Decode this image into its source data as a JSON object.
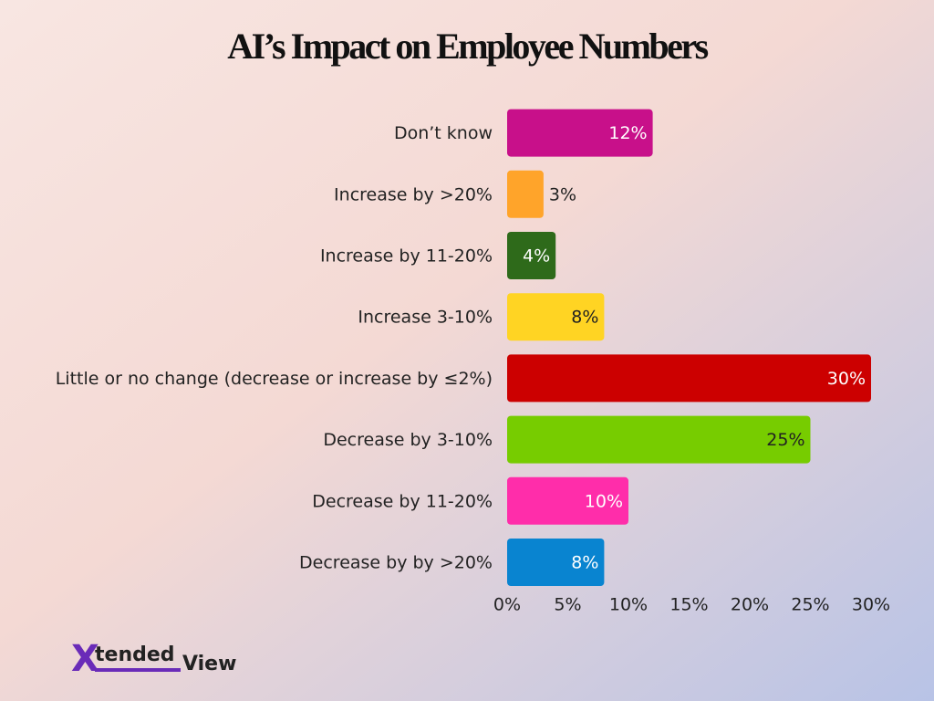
{
  "chart_data": {
    "type": "barh",
    "title": "AI’s Impact on Employee Numbers",
    "categories": [
      "Don’t know",
      "Increase by >20%",
      "Increase by 11-20%",
      "Increase 3-10%",
      "Little or no change (decrease or increase by ≤2%)",
      "Decrease by 3-10%",
      "Decrease by 11-20%",
      "Decrease by by >20%"
    ],
    "values": [
      12,
      3,
      4,
      8,
      30,
      25,
      10,
      8
    ],
    "value_labels": [
      "12%",
      "3%",
      "4%",
      "8%",
      "30%",
      "25%",
      "10%",
      "8%"
    ],
    "colors": [
      "#c8108a",
      "#ffa42a",
      "#2e6a1a",
      "#ffd423",
      "#cc0000",
      "#77cc00",
      "#ff2daa",
      "#0984d0"
    ],
    "xlim": [
      0,
      30
    ],
    "xticks": [
      {
        "value": 0,
        "label": "0%"
      },
      {
        "value": 5,
        "label": "5%"
      },
      {
        "value": 10,
        "label": "10%"
      },
      {
        "value": 15,
        "label": "15%"
      },
      {
        "value": 20,
        "label": "20%"
      },
      {
        "value": 25,
        "label": "25%"
      },
      {
        "value": 30,
        "label": "30%"
      }
    ],
    "grid": false
  },
  "logo": {
    "mark": "X",
    "first": "tended",
    "second": "View"
  }
}
